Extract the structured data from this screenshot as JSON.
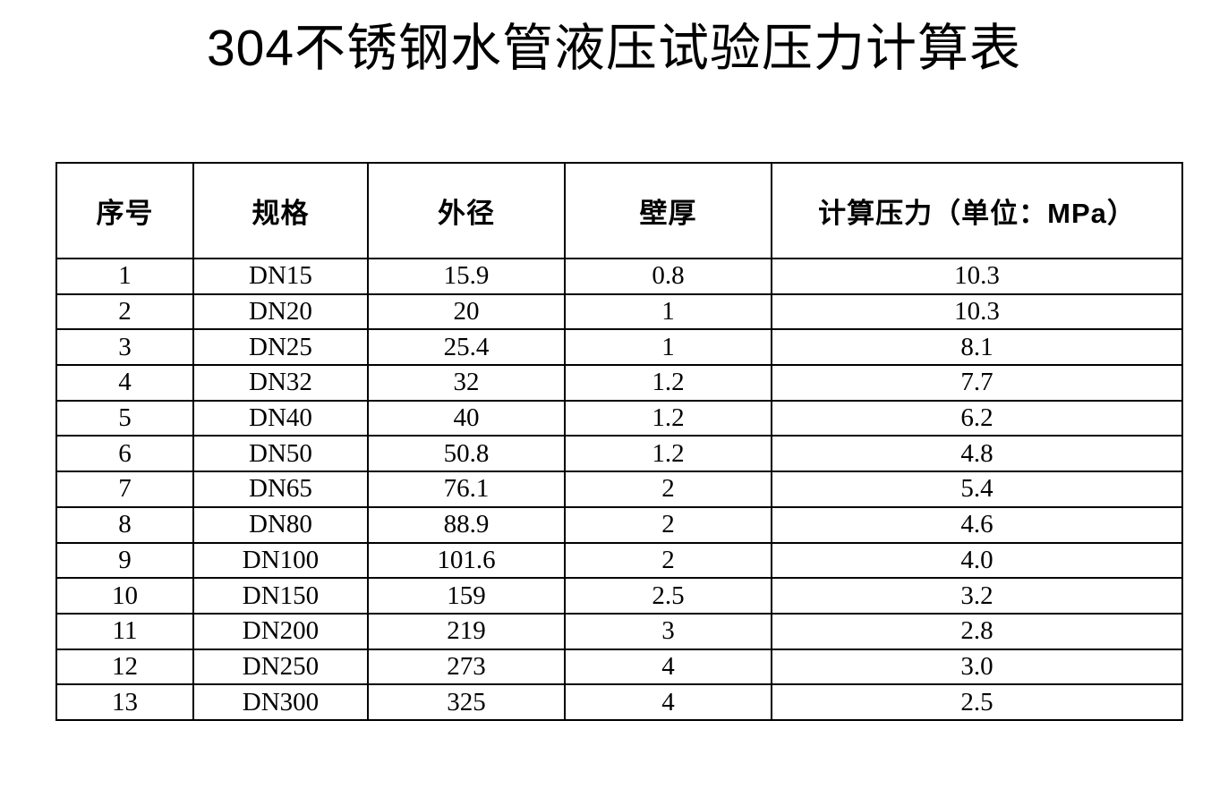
{
  "page": {
    "title": "304不锈钢水管液压试验压力计算表"
  },
  "table": {
    "headers": [
      "序号",
      "规格",
      "外径",
      "壁厚",
      "计算压力（单位：MPa）"
    ],
    "rows": [
      [
        "1",
        "DN15",
        "15.9",
        "0.8",
        "10.3"
      ],
      [
        "2",
        "DN20",
        "20",
        "1",
        "10.3"
      ],
      [
        "3",
        "DN25",
        "25.4",
        "1",
        "8.1"
      ],
      [
        "4",
        "DN32",
        "32",
        "1.2",
        "7.7"
      ],
      [
        "5",
        "DN40",
        "40",
        "1.2",
        "6.2"
      ],
      [
        "6",
        "DN50",
        "50.8",
        "1.2",
        "4.8"
      ],
      [
        "7",
        "DN65",
        "76.1",
        "2",
        "5.4"
      ],
      [
        "8",
        "DN80",
        "88.9",
        "2",
        "4.6"
      ],
      [
        "9",
        "DN100",
        "101.6",
        "2",
        "4.0"
      ],
      [
        "10",
        "DN150",
        "159",
        "2.5",
        "3.2"
      ],
      [
        "11",
        "DN200",
        "219",
        "3",
        "2.8"
      ],
      [
        "12",
        "DN250",
        "273",
        "4",
        "3.0"
      ],
      [
        "13",
        "DN300",
        "325",
        "4",
        "2.5"
      ]
    ]
  },
  "colors": {
    "text": "#000000",
    "border": "#000000",
    "background": "#ffffff"
  }
}
